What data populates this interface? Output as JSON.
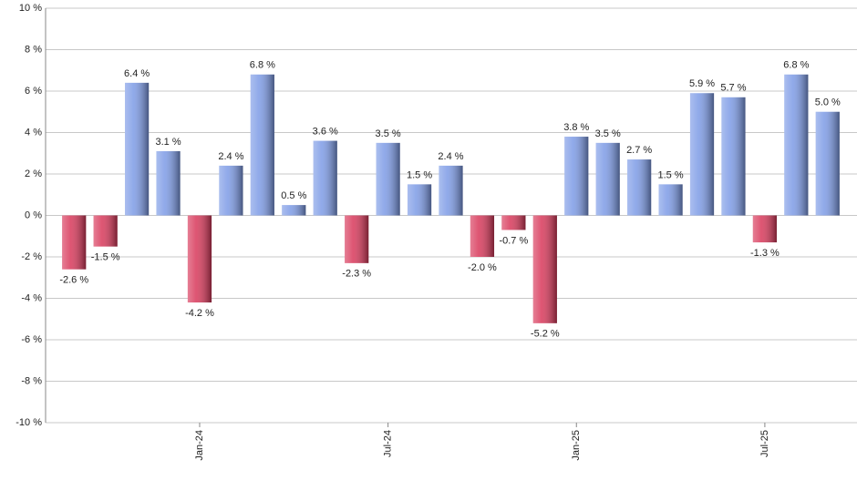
{
  "chart_data": {
    "type": "bar",
    "categories": [
      null,
      null,
      null,
      null,
      "Jan-24",
      null,
      null,
      null,
      null,
      null,
      "Jul-24",
      null,
      null,
      null,
      null,
      null,
      "Jan-25",
      null,
      null,
      null,
      null,
      null,
      "Jul-25",
      null,
      null
    ],
    "values": [
      -2.6,
      -1.5,
      6.4,
      3.1,
      -4.2,
      2.4,
      6.8,
      0.5,
      3.6,
      -2.3,
      3.5,
      1.5,
      2.4,
      -2.0,
      -0.7,
      -5.2,
      3.8,
      3.5,
      2.7,
      1.5,
      5.9,
      5.7,
      -1.3,
      6.8,
      5.0
    ],
    "value_labels": [
      "-2.6 %",
      "-1.5 %",
      "6.4 %",
      "3.1 %",
      "-4.2 %",
      "2.4 %",
      "6.8 %",
      "0.5 %",
      "3.6 %",
      "-2.3 %",
      "3.5 %",
      "1.5 %",
      "2.4 %",
      "-2.0 %",
      "-0.7 %",
      "-5.2 %",
      "3.8 %",
      "3.5 %",
      "2.7 %",
      "1.5 %",
      "5.9 %",
      "5.7 %",
      "-1.3 %",
      "6.8 %",
      "5.0 %"
    ],
    "colors": {
      "positive": "#7d9be6",
      "negative": "#d8385a"
    },
    "ylim": [
      -10,
      10
    ],
    "yticks": [
      {
        "value": -10,
        "label": "-10 %"
      },
      {
        "value": -8,
        "label": "-8 %"
      },
      {
        "value": -6,
        "label": "-6 %"
      },
      {
        "value": -4,
        "label": "-4 %"
      },
      {
        "value": -2,
        "label": "-2 %"
      },
      {
        "value": 0,
        "label": "0 %"
      },
      {
        "value": 2,
        "label": "2 %"
      },
      {
        "value": 4,
        "label": "4 %"
      },
      {
        "value": 6,
        "label": "6 %"
      },
      {
        "value": 8,
        "label": "8 %"
      },
      {
        "value": 10,
        "label": "10 %"
      }
    ],
    "grid": true
  }
}
